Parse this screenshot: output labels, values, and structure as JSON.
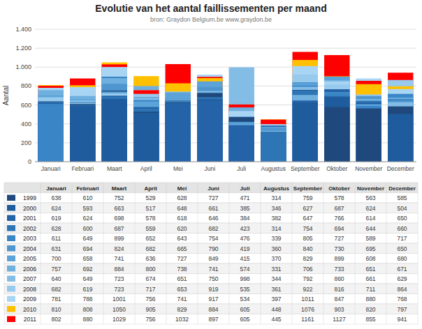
{
  "chart_data": {
    "type": "bar",
    "title": "Evolutie van het aantal faillissementen per maand",
    "subtitle": "bron: Graydon Belgium.be   www.graydon.be",
    "y_label": "Aantal",
    "categories": [
      "Januari",
      "Februari",
      "Maart",
      "April",
      "Mei",
      "Juni",
      "Juli",
      "Augustus",
      "September",
      "Oktober",
      "November",
      "December"
    ],
    "series": [
      {
        "name": "1999",
        "color": "#1F497D",
        "values": [
          638,
          610,
          752,
          529,
          628,
          727,
          471,
          314,
          759,
          578,
          563,
          585
        ]
      },
      {
        "name": "2000",
        "color": "#1F5C9E",
        "values": [
          624,
          593,
          663,
          517,
          648,
          661,
          385,
          346,
          627,
          687,
          624,
          504
        ]
      },
      {
        "name": "2001",
        "color": "#2563A8",
        "values": [
          619,
          624,
          698,
          578,
          618,
          646,
          384,
          382,
          647,
          766,
          614,
          650
        ]
      },
      {
        "name": "2002",
        "color": "#2E75B6",
        "values": [
          628,
          600,
          687,
          559,
          620,
          682,
          423,
          314,
          754,
          694,
          644,
          660
        ]
      },
      {
        "name": "2003",
        "color": "#3A85C6",
        "values": [
          611,
          649,
          899,
          652,
          643,
          754,
          476,
          339,
          805,
          727,
          589,
          717
        ]
      },
      {
        "name": "2004",
        "color": "#4F96D0",
        "values": [
          631,
          694,
          824,
          682,
          665,
          790,
          419,
          360,
          840,
          730,
          695,
          650
        ]
      },
      {
        "name": "2005",
        "color": "#5BA3D8",
        "values": [
          700,
          658,
          741,
          636,
          727,
          849,
          415,
          370,
          829,
          899,
          608,
          680
        ]
      },
      {
        "name": "2006",
        "color": "#6FB0DF",
        "values": [
          757,
          692,
          884,
          800,
          738,
          741,
          574,
          331,
          706,
          733,
          651,
          671
        ]
      },
      {
        "name": "2007",
        "color": "#83BDE6",
        "values": [
          640,
          649,
          723,
          674,
          651,
          750,
          998,
          344,
          792,
          860,
          661,
          629
        ]
      },
      {
        "name": "2008",
        "color": "#97CAED",
        "values": [
          682,
          619,
          723,
          717,
          653,
          919,
          535,
          361,
          922,
          816,
          711,
          864
        ]
      },
      {
        "name": "2009",
        "color": "#A9D5F5",
        "values": [
          781,
          788,
          1001,
          756,
          741,
          917,
          534,
          397,
          1011,
          847,
          880,
          768
        ]
      },
      {
        "name": "2010",
        "color": "#FFC000",
        "values": [
          810,
          808,
          1050,
          905,
          829,
          884,
          605,
          448,
          1076,
          903,
          820,
          797
        ]
      },
      {
        "name": "2011",
        "color": "#FF0000",
        "values": [
          802,
          880,
          1029,
          756,
          1032,
          897,
          605,
          445,
          1161,
          1127,
          855,
          941
        ]
      }
    ],
    "ylim": [
      0,
      1400
    ],
    "yticks": [
      0,
      200,
      400,
      600,
      800,
      {
        "value": 1000,
        "label": "1.000"
      },
      {
        "value": 1200,
        "label": "1.200"
      },
      {
        "value": 1400,
        "label": "1.400"
      }
    ],
    "grid": true
  }
}
